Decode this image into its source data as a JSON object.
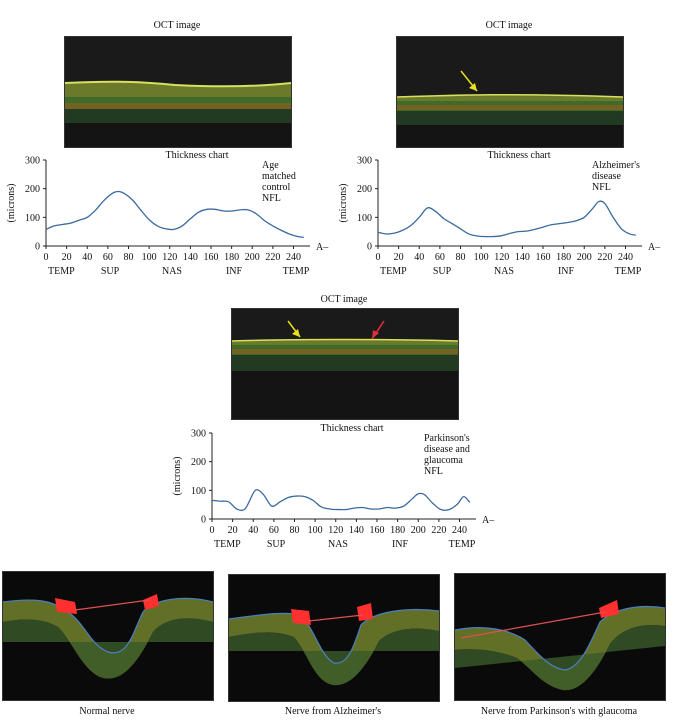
{
  "panels": [
    {
      "oct_title": "OCT image",
      "chart_title": "Thickness chart",
      "annotation": [
        "Age",
        "matched",
        "control",
        "NFL"
      ]
    },
    {
      "oct_title": "OCT image",
      "chart_title": "Thickness chart",
      "annotation": [
        "Alzheimer's",
        "disease",
        "NFL"
      ]
    },
    {
      "oct_title": "OCT image",
      "chart_title": "Thickness chart",
      "annotation": [
        "Parkinson's",
        "disease and",
        "glaucoma",
        "NFL"
      ]
    }
  ],
  "nerve_captions": [
    "Normal nerve",
    "Nerve from Alzheimer's",
    "Nerve from Parkinson's with glaucoma"
  ],
  "colors": {
    "curve": "#3a6aa0",
    "arrow_yellow": "#e8e020",
    "arrow_red": "#e0303a",
    "cup_red": "#ff3030"
  },
  "chart_data": [
    {
      "type": "line",
      "ylabel": "(microns)",
      "ylim": [
        0,
        300
      ],
      "yticks": [
        0,
        100,
        200,
        300
      ],
      "xlim": [
        0,
        256
      ],
      "xticks": [
        0,
        20,
        40,
        60,
        80,
        100,
        120,
        140,
        160,
        180,
        200,
        220,
        240
      ],
      "x_end_label": "A–",
      "regions": [
        "TEMP",
        "SUP",
        "NAS",
        "INF",
        "TEMP"
      ],
      "x": [
        0,
        8,
        16,
        24,
        32,
        40,
        48,
        56,
        64,
        70,
        76,
        84,
        92,
        100,
        108,
        116,
        124,
        132,
        140,
        148,
        156,
        164,
        172,
        180,
        188,
        196,
        204,
        212,
        220,
        228,
        236,
        244,
        250
      ],
      "values": [
        58,
        70,
        75,
        80,
        90,
        100,
        125,
        158,
        183,
        190,
        183,
        160,
        125,
        92,
        70,
        60,
        58,
        70,
        95,
        118,
        128,
        128,
        122,
        122,
        126,
        126,
        112,
        88,
        70,
        55,
        42,
        33,
        30
      ]
    },
    {
      "type": "line",
      "ylabel": "(microns)",
      "ylim": [
        0,
        300
      ],
      "yticks": [
        0,
        100,
        200,
        300
      ],
      "xlim": [
        0,
        256
      ],
      "xticks": [
        0,
        20,
        40,
        60,
        80,
        100,
        120,
        140,
        160,
        180,
        200,
        220,
        240
      ],
      "x_end_label": "A–",
      "regions": [
        "TEMP",
        "SUP",
        "NAS",
        "INF",
        "TEMP"
      ],
      "x": [
        0,
        8,
        16,
        24,
        32,
        40,
        48,
        56,
        64,
        72,
        80,
        88,
        96,
        104,
        112,
        120,
        128,
        136,
        144,
        152,
        160,
        168,
        176,
        184,
        192,
        200,
        208,
        214,
        220,
        228,
        236,
        244,
        250
      ],
      "values": [
        48,
        42,
        45,
        55,
        72,
        100,
        133,
        120,
        95,
        78,
        60,
        42,
        35,
        33,
        33,
        36,
        44,
        50,
        52,
        58,
        66,
        74,
        78,
        82,
        88,
        100,
        130,
        155,
        148,
        100,
        60,
        42,
        38
      ]
    },
    {
      "type": "line",
      "ylabel": "(microns)",
      "ylim": [
        0,
        300
      ],
      "yticks": [
        0,
        100,
        200,
        300
      ],
      "xlim": [
        0,
        256
      ],
      "xticks": [
        0,
        20,
        40,
        60,
        80,
        100,
        120,
        140,
        160,
        180,
        200,
        220,
        240
      ],
      "x_end_label": "A–",
      "regions": [
        "TEMP",
        "SUP",
        "NAS",
        "INF",
        "TEMP"
      ],
      "x": [
        0,
        8,
        16,
        24,
        32,
        40,
        44,
        50,
        58,
        66,
        74,
        82,
        90,
        98,
        106,
        114,
        122,
        130,
        138,
        146,
        154,
        162,
        170,
        178,
        186,
        194,
        200,
        206,
        214,
        222,
        230,
        238,
        244,
        250
      ],
      "values": [
        65,
        62,
        60,
        35,
        35,
        90,
        102,
        85,
        45,
        60,
        75,
        80,
        78,
        65,
        42,
        35,
        33,
        33,
        38,
        40,
        35,
        35,
        40,
        38,
        45,
        70,
        88,
        85,
        55,
        33,
        33,
        52,
        78,
        58
      ]
    }
  ]
}
